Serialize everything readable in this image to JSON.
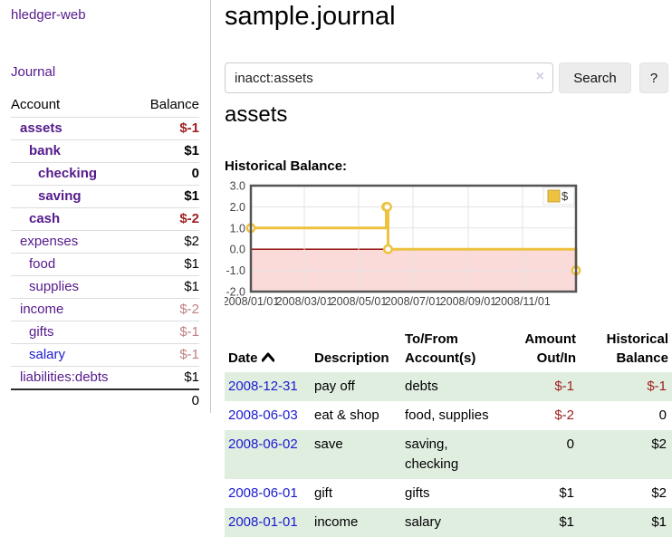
{
  "colors": {
    "link_purple": "#551a8b",
    "link_blue": "#1b1bd1",
    "negative_strong": "#9e2020",
    "negative_dim": "#c08080",
    "row_stripe_green": "#e0eee0",
    "chart_gold": "#edc240",
    "chart_negative_fill": "#fbdada",
    "chart_zero_line": "#8b0000"
  },
  "sidebar": {
    "brand": "hledger-web",
    "nav_journal": "Journal",
    "accounts_table": {
      "col_account": "Account",
      "col_balance": "Balance",
      "rows": [
        {
          "name": "assets",
          "balance": "$-1",
          "depth": 1,
          "matched": true,
          "balance_style": "neg-strong",
          "name_style": "purple"
        },
        {
          "name": "bank",
          "balance": "$1",
          "depth": 2,
          "matched": true,
          "balance_style": "strong",
          "name_style": "purple"
        },
        {
          "name": "checking",
          "balance": "0",
          "depth": 3,
          "matched": true,
          "balance_style": "strong",
          "name_style": "purple"
        },
        {
          "name": "saving",
          "balance": "$1",
          "depth": 3,
          "matched": true,
          "balance_style": "strong",
          "name_style": "purple"
        },
        {
          "name": "cash",
          "balance": "$-2",
          "depth": 2,
          "matched": true,
          "balance_style": "neg-strong",
          "name_style": "purple"
        },
        {
          "name": "expenses",
          "balance": "$2",
          "depth": 1,
          "matched": false,
          "balance_style": "normal",
          "name_style": "purple"
        },
        {
          "name": "food",
          "balance": "$1",
          "depth": 2,
          "matched": false,
          "balance_style": "normal",
          "name_style": "purple"
        },
        {
          "name": "supplies",
          "balance": "$1",
          "depth": 2,
          "matched": false,
          "balance_style": "normal",
          "name_style": "purple"
        },
        {
          "name": "income",
          "balance": "$-2",
          "depth": 1,
          "matched": false,
          "balance_style": "neg-dim",
          "name_style": "purple"
        },
        {
          "name": "gifts",
          "balance": "$-1",
          "depth": 2,
          "matched": false,
          "balance_style": "neg-dim",
          "name_style": "purple"
        },
        {
          "name": "salary",
          "balance": "$-1",
          "depth": 2,
          "matched": false,
          "balance_style": "neg-dim",
          "name_style": "blue"
        },
        {
          "name": "liabilities:debts",
          "balance": "$1",
          "depth": 1,
          "matched": false,
          "balance_style": "normal",
          "name_style": "purple"
        }
      ],
      "total": "0"
    }
  },
  "main": {
    "title": "sample.journal",
    "search": {
      "value": "inacct:assets",
      "clear_icon": "×",
      "search_button": "Search",
      "help_button": "?"
    },
    "account_heading": "assets",
    "chart_label": "Historical Balance:"
  },
  "chart_data": {
    "type": "line",
    "title": "Historical Balance",
    "step": true,
    "series": [
      {
        "name": "$",
        "color": "#edc240",
        "points": [
          {
            "x": "2008-01-01",
            "y": 1
          },
          {
            "x": "2008-06-01",
            "y": 2
          },
          {
            "x": "2008-06-02",
            "y": 2
          },
          {
            "x": "2008-06-03",
            "y": 0
          },
          {
            "x": "2008-12-31",
            "y": -1
          }
        ]
      }
    ],
    "xlim": [
      "2008-01-01",
      "2008-12-31"
    ],
    "ylim": [
      -2,
      3
    ],
    "y_ticks": [
      "3.0",
      "2.0",
      "1.0",
      "0.0",
      "-1.0",
      "-2.0"
    ],
    "x_ticks": [
      "2008/01/01",
      "2008/03/01",
      "2008/05/01",
      "2008/07/01",
      "2008/09/01",
      "2008/11/01"
    ],
    "legend": {
      "label": "$",
      "position": "top-right"
    },
    "grid": true,
    "negative_region": true
  },
  "register": {
    "headers": [
      {
        "label": "Date",
        "sub": "",
        "align": "left",
        "sorted": "asc"
      },
      {
        "label": "Description",
        "sub": "",
        "align": "left"
      },
      {
        "label": "To/From",
        "sub": "Account(s)",
        "align": "left"
      },
      {
        "label": "Amount",
        "sub": "Out/In",
        "align": "right"
      },
      {
        "label": "Historical",
        "sub": "Balance",
        "align": "right"
      }
    ],
    "rows": [
      {
        "date": "2008-12-31",
        "description": "pay off",
        "accounts": "debts",
        "amount": "$-1",
        "amount_neg": true,
        "balance": "$-1",
        "balance_neg": true
      },
      {
        "date": "2008-06-03",
        "description": "eat & shop",
        "accounts": "food, supplies",
        "amount": "$-2",
        "amount_neg": true,
        "balance": "0",
        "balance_neg": false
      },
      {
        "date": "2008-06-02",
        "description": "save",
        "accounts": "saving, checking",
        "amount": "0",
        "amount_neg": false,
        "balance": "$2",
        "balance_neg": false
      },
      {
        "date": "2008-06-01",
        "description": "gift",
        "accounts": "gifts",
        "amount": "$1",
        "amount_neg": false,
        "balance": "$2",
        "balance_neg": false
      },
      {
        "date": "2008-01-01",
        "description": "income",
        "accounts": "salary",
        "amount": "$1",
        "amount_neg": false,
        "balance": "$1",
        "balance_neg": false
      }
    ]
  }
}
